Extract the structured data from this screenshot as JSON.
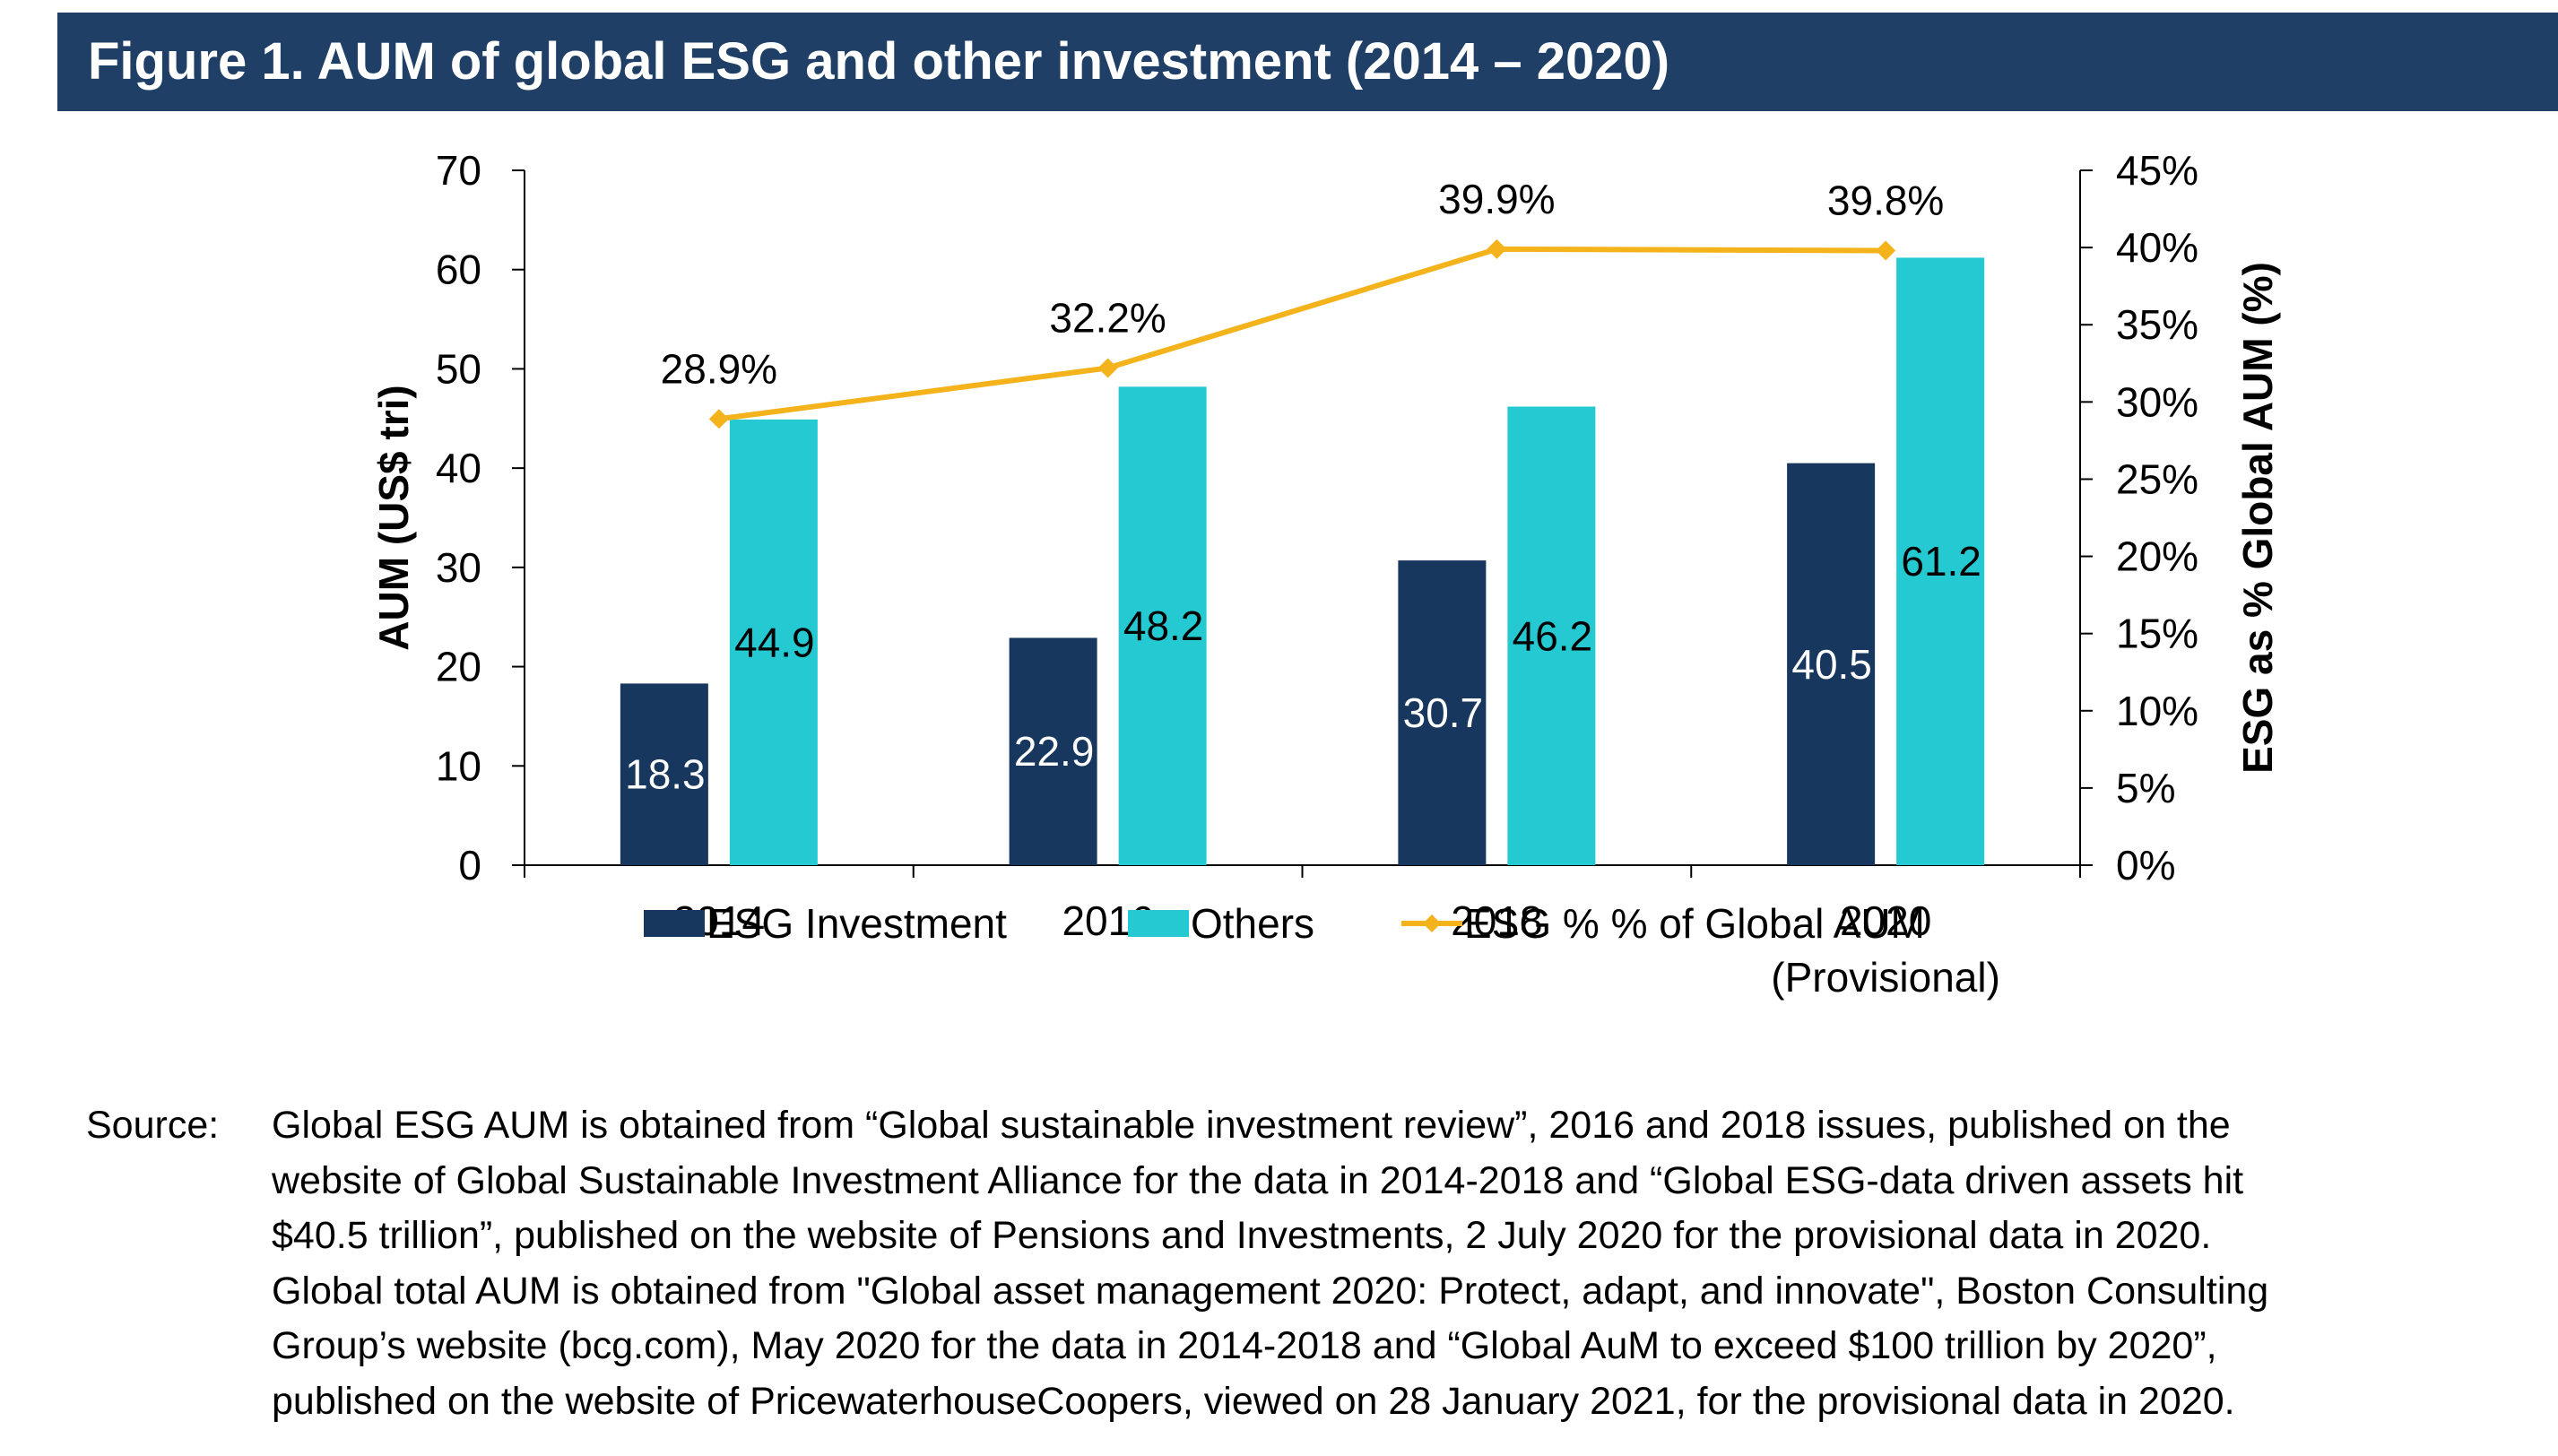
{
  "header": {
    "title": "Figure 1. AUM of global ESG and other investment (2014 – 2020)"
  },
  "chart_data": {
    "type": "bar",
    "categories": [
      [
        "2014"
      ],
      [
        "2016"
      ],
      [
        "2018"
      ],
      [
        "2020",
        "(Provisional)"
      ]
    ],
    "series": [
      {
        "name": "ESG Investment",
        "type": "bar",
        "axis": "left",
        "color": "#17375e",
        "label_color": "#ffffff",
        "values": [
          18.3,
          22.9,
          30.7,
          40.5
        ],
        "labels": [
          "18.3",
          "22.9",
          "30.7",
          "40.5"
        ]
      },
      {
        "name": "Others",
        "type": "bar",
        "axis": "left",
        "color": "#25c9d2",
        "label_color": "#000000",
        "values": [
          44.9,
          48.2,
          46.2,
          61.2
        ],
        "labels": [
          "44.9",
          "48.2",
          "46.2",
          "61.2"
        ]
      },
      {
        "name": "ESG % % of Global AUM",
        "type": "line",
        "axis": "right",
        "color": "#f4b21b",
        "marker": "diamond",
        "values": [
          28.9,
          32.2,
          39.9,
          39.8
        ],
        "labels": [
          "28.9%",
          "32.2%",
          "39.9%",
          "39.8%"
        ]
      }
    ],
    "ylabel": "AUM (US$ tri)",
    "ylim": [
      0,
      70
    ],
    "yticks": [
      "0",
      "10",
      "20",
      "30",
      "40",
      "50",
      "60",
      "70"
    ],
    "y2label": "ESG as % Global AUM (%)",
    "y2lim": [
      0,
      45
    ],
    "y2ticks": [
      "0%",
      "5%",
      "10%",
      "15%",
      "20%",
      "25%",
      "30%",
      "35%",
      "40%",
      "45%"
    ],
    "grid": false,
    "legend_position": "bottom"
  },
  "source": {
    "label": "Source:",
    "lines": [
      "Global ESG AUM is obtained from “Global sustainable investment review”, 2016 and 2018 issues, published on the",
      "website of Global Sustainable Investment Alliance for the data in 2014-2018 and “Global ESG-data driven assets hit",
      "$40.5 trillion”, published on the website of Pensions and Investments, 2 July 2020 for the provisional data in 2020.",
      "Global total AUM is obtained from \"Global asset management 2020: Protect, adapt, and innovate\", Boston Consulting",
      "Group’s website (bcg.com), May 2020 for the data in 2014-2018 and “Global AuM to exceed $100 trillion by 2020”,",
      "published on the website of PricewaterhouseCoopers, viewed on 28 January 2021, for the provisional data in 2020."
    ]
  }
}
